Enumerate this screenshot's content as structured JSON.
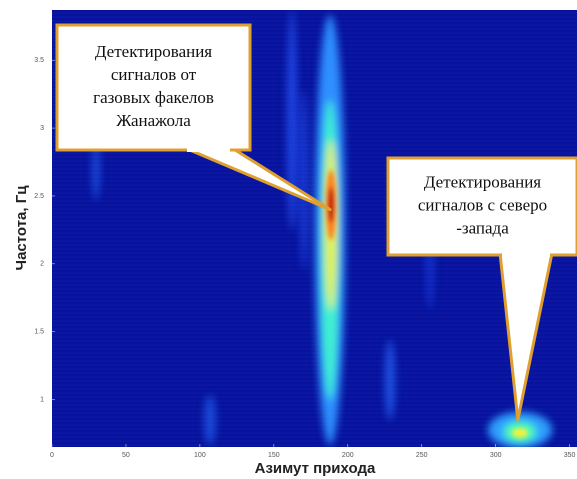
{
  "chart_data": {
    "type": "spectrogram",
    "x_label": "Азимут прихода",
    "y_label": "Частота, Гц",
    "xlim": [
      0,
      355
    ],
    "ylim": [
      0.65,
      3.87
    ],
    "xticks": [
      0,
      50,
      100,
      150,
      200,
      250,
      300,
      350
    ],
    "yticks": [
      1,
      1.5,
      2,
      2.5,
      3,
      3.5
    ],
    "annotations": [
      {
        "lines": [
          "Детектирования",
          "сигналов от",
          "газовых факелов",
          "Жанажола"
        ],
        "x": 188,
        "y": 2.4
      },
      {
        "lines": [
          "Детектирования",
          "сигналов с северо",
          "-запада"
        ],
        "x": 315,
        "y": 0.85
      }
    ]
  }
}
